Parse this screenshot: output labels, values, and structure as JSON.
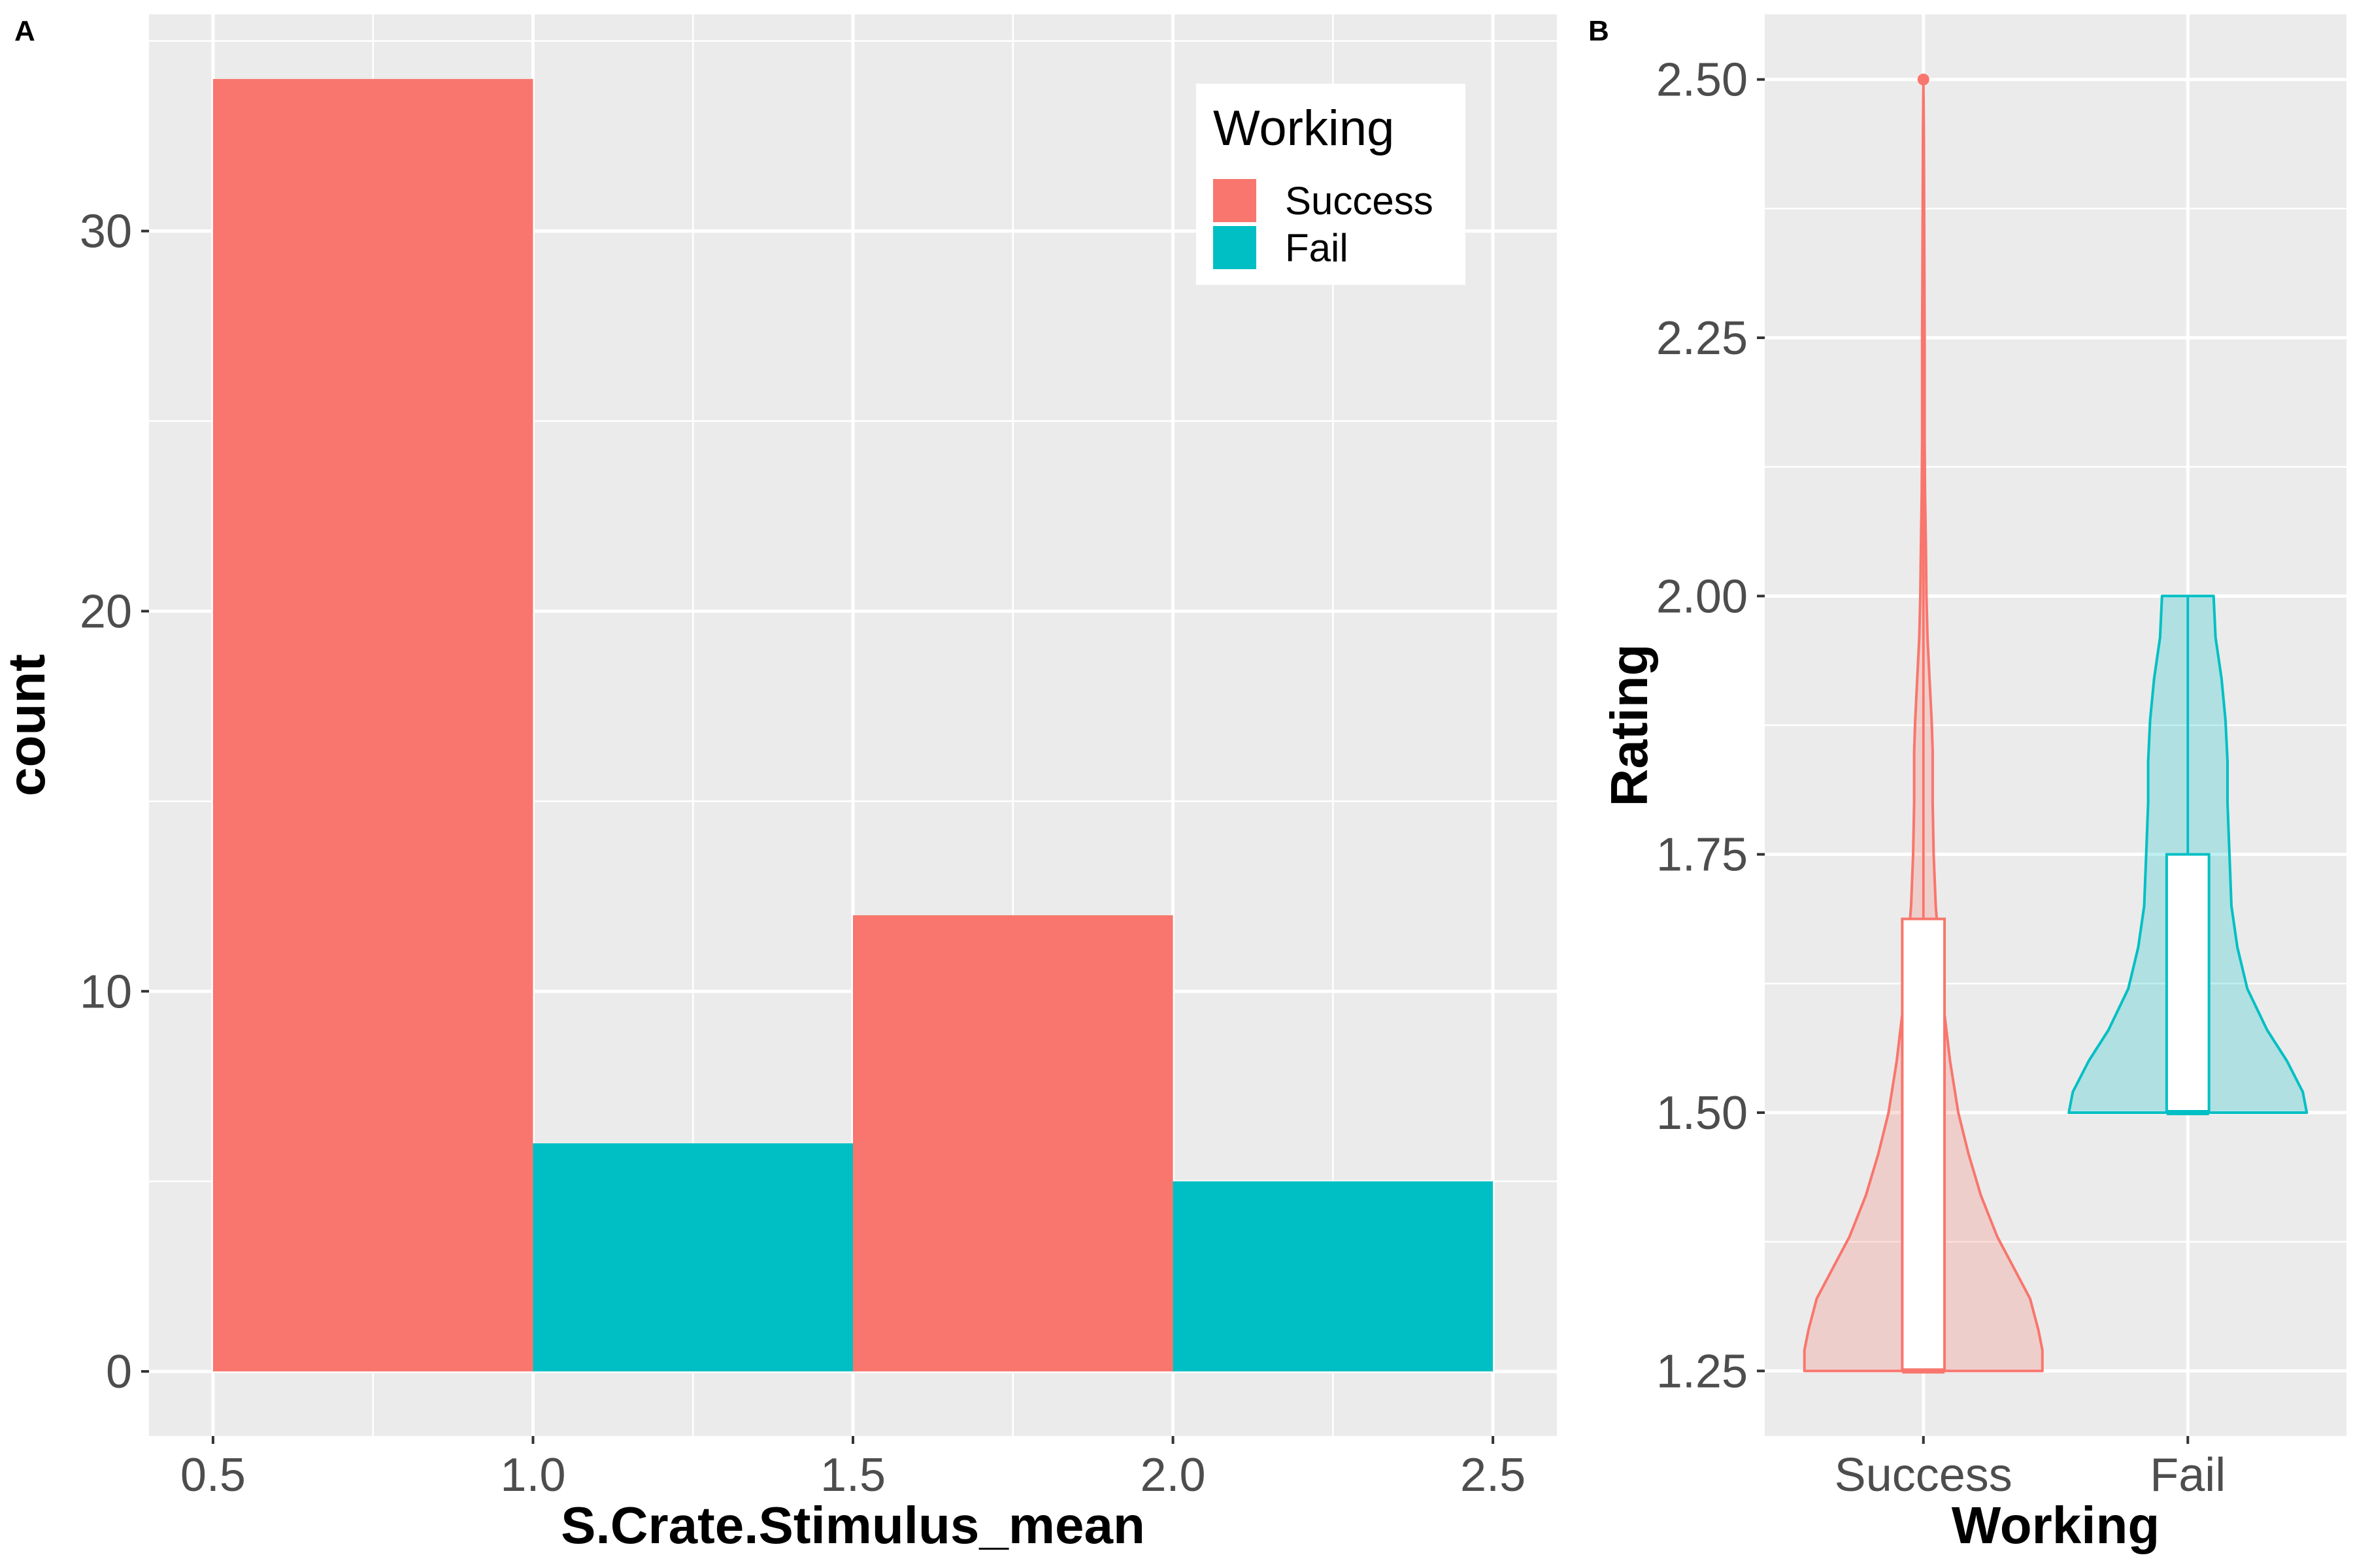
{
  "panels": {
    "a": {
      "letter": "A"
    },
    "b": {
      "letter": "B"
    }
  },
  "colors": {
    "success": "#F8766D",
    "fail": "#00BFC4",
    "panel_bg": "#EBEBEB",
    "grid": "#FFFFFF",
    "tick_text": "#4D4D4D"
  },
  "chart_data": [
    {
      "type": "bar",
      "panel": "A",
      "title": "",
      "xlabel": "S.Crate.Stimulus_mean",
      "ylabel": "count",
      "xlim": [
        0.4,
        2.6
      ],
      "ylim": [
        -1.7,
        35.7
      ],
      "x_ticks": [
        "0.5",
        "1.0",
        "1.5",
        "2.0",
        "2.5"
      ],
      "y_ticks": [
        "0",
        "10",
        "20",
        "30"
      ],
      "grid": true,
      "legend": {
        "title": "Working",
        "placement": "top-right",
        "entries": [
          "Success",
          "Fail"
        ]
      },
      "bins": [
        {
          "x_min": 0.5,
          "x_max": 1.0,
          "count": 34,
          "group": "Success"
        },
        {
          "x_min": 1.0,
          "x_max": 1.5,
          "count": 6,
          "group": "Fail"
        },
        {
          "x_min": 1.5,
          "x_max": 2.0,
          "count": 12,
          "group": "Success"
        },
        {
          "x_min": 2.0,
          "x_max": 2.5,
          "count": 5,
          "group": "Fail"
        }
      ]
    },
    {
      "type": "violin",
      "panel": "B",
      "title": "",
      "xlabel": "Working",
      "ylabel": "Rating",
      "categories": [
        "Success",
        "Fail"
      ],
      "ylim": [
        1.187,
        2.563
      ],
      "y_ticks": [
        "1.25",
        "1.50",
        "1.75",
        "2.00",
        "2.25",
        "2.50"
      ],
      "grid": true,
      "series": [
        {
          "category": "Success",
          "density": [
            [
              1.25,
              0.58
            ],
            [
              1.27,
              0.58
            ],
            [
              1.29,
              0.56
            ],
            [
              1.32,
              0.52
            ],
            [
              1.35,
              0.44
            ],
            [
              1.38,
              0.36
            ],
            [
              1.42,
              0.28
            ],
            [
              1.46,
              0.22
            ],
            [
              1.5,
              0.17
            ],
            [
              1.55,
              0.13
            ],
            [
              1.6,
              0.1
            ],
            [
              1.65,
              0.08
            ],
            [
              1.7,
              0.06
            ],
            [
              1.75,
              0.05
            ],
            [
              1.8,
              0.045
            ],
            [
              1.85,
              0.045
            ],
            [
              1.88,
              0.04
            ],
            [
              1.92,
              0.03
            ],
            [
              1.96,
              0.02
            ],
            [
              2.0,
              0.015
            ],
            [
              2.05,
              0.012
            ],
            [
              2.1,
              0.008
            ],
            [
              2.15,
              0.006
            ],
            [
              2.2,
              0.006
            ],
            [
              2.25,
              0.006
            ],
            [
              2.3,
              0.005
            ],
            [
              2.35,
              0.004
            ],
            [
              2.4,
              0.003
            ],
            [
              2.45,
              0.002
            ],
            [
              2.5,
              0.0
            ]
          ],
          "box": {
            "q1": 1.25,
            "median": 1.25,
            "q3": 1.6875,
            "whisker_low": 1.25,
            "whisker_high": 2.25
          },
          "outliers": [
            2.5
          ]
        },
        {
          "category": "Fail",
          "density": [
            [
              1.5,
              0.6
            ],
            [
              1.52,
              0.58
            ],
            [
              1.55,
              0.5
            ],
            [
              1.58,
              0.4
            ],
            [
              1.62,
              0.3
            ],
            [
              1.66,
              0.25
            ],
            [
              1.7,
              0.22
            ],
            [
              1.75,
              0.21
            ],
            [
              1.8,
              0.2
            ],
            [
              1.84,
              0.2
            ],
            [
              1.88,
              0.19
            ],
            [
              1.92,
              0.17
            ],
            [
              1.96,
              0.14
            ],
            [
              2.0,
              0.13
            ]
          ],
          "box": {
            "q1": 1.5,
            "median": 1.5,
            "q3": 1.75,
            "whisker_low": 1.5,
            "whisker_high": 2.0
          },
          "outliers": []
        }
      ]
    }
  ]
}
